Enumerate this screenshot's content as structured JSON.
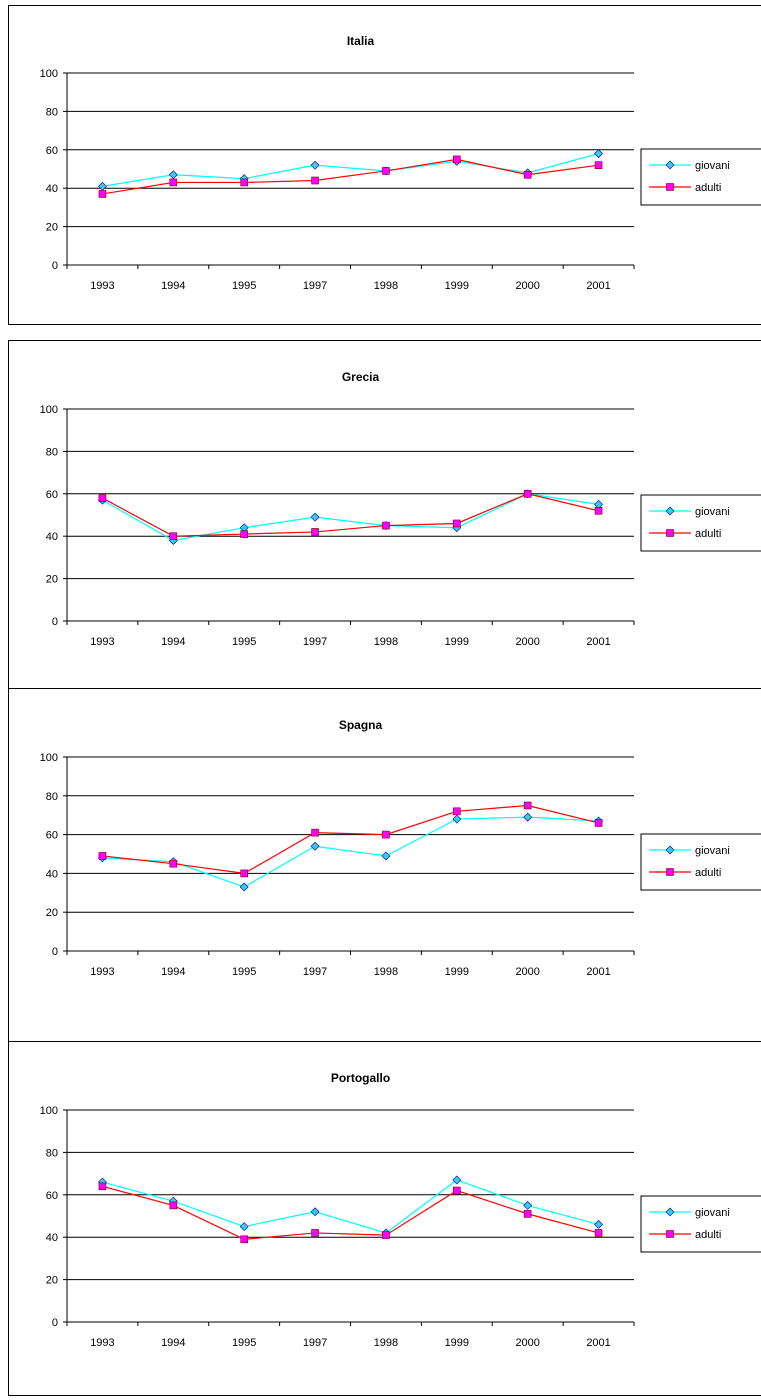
{
  "chart_data": [
    {
      "type": "line",
      "title": "Italia",
      "categories": [
        "1993",
        "1994",
        "1995",
        "1997",
        "1998",
        "1999",
        "2000",
        "2001"
      ],
      "ylim": [
        0,
        100
      ],
      "yticks": [
        0,
        20,
        40,
        60,
        80,
        100
      ],
      "grid": true,
      "legend": "right",
      "series": [
        {
          "name": "giovani",
          "color": "#00FFFF",
          "marker": "diamond",
          "markerColor": "#33CCFF",
          "values": [
            41,
            47,
            45,
            52,
            49,
            54,
            48,
            58
          ]
        },
        {
          "name": "adulti",
          "color": "#FF0000",
          "marker": "square",
          "markerColor": "#FF00FF",
          "values": [
            37,
            43,
            43,
            44,
            49,
            55,
            47,
            52
          ]
        }
      ]
    },
    {
      "type": "line",
      "title": "Grecia",
      "categories": [
        "1993",
        "1994",
        "1995",
        "1997",
        "1998",
        "1999",
        "2000",
        "2001"
      ],
      "ylim": [
        0,
        100
      ],
      "yticks": [
        0,
        20,
        40,
        60,
        80,
        100
      ],
      "grid": true,
      "legend": "right",
      "series": [
        {
          "name": "giovani",
          "color": "#00FFFF",
          "marker": "diamond",
          "markerColor": "#33CCFF",
          "values": [
            57,
            38,
            44,
            49,
            45,
            44,
            60,
            55
          ]
        },
        {
          "name": "adulti",
          "color": "#FF0000",
          "marker": "square",
          "markerColor": "#FF00FF",
          "values": [
            58,
            40,
            41,
            42,
            45,
            46,
            60,
            52
          ]
        }
      ]
    },
    {
      "type": "line",
      "title": "Spagna",
      "categories": [
        "1993",
        "1994",
        "1995",
        "1997",
        "1998",
        "1999",
        "2000",
        "2001"
      ],
      "ylim": [
        0,
        100
      ],
      "yticks": [
        0,
        20,
        40,
        60,
        80,
        100
      ],
      "grid": true,
      "legend": "right",
      "series": [
        {
          "name": "giovani",
          "color": "#00FFFF",
          "marker": "diamond",
          "markerColor": "#33CCFF",
          "values": [
            48,
            46,
            33,
            54,
            49,
            68,
            69,
            67
          ]
        },
        {
          "name": "adulti",
          "color": "#FF0000",
          "marker": "square",
          "markerColor": "#FF00FF",
          "values": [
            49,
            45,
            40,
            61,
            60,
            72,
            75,
            66
          ]
        }
      ]
    },
    {
      "type": "line",
      "title": "Portogallo",
      "categories": [
        "1993",
        "1994",
        "1995",
        "1997",
        "1998",
        "1999",
        "2000",
        "2001"
      ],
      "ylim": [
        0,
        100
      ],
      "yticks": [
        0,
        20,
        40,
        60,
        80,
        100
      ],
      "grid": true,
      "legend": "right",
      "series": [
        {
          "name": "giovani",
          "color": "#00FFFF",
          "marker": "diamond",
          "markerColor": "#33CCFF",
          "values": [
            66,
            57,
            45,
            52,
            42,
            67,
            55,
            46
          ]
        },
        {
          "name": "adulti",
          "color": "#FF0000",
          "marker": "square",
          "markerColor": "#FF00FF",
          "values": [
            64,
            55,
            39,
            42,
            41,
            62,
            51,
            42
          ]
        }
      ]
    }
  ]
}
